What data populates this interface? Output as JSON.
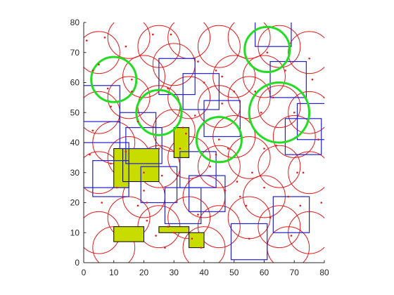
{
  "chart_data": {
    "type": "scatter",
    "title": "",
    "xlabel": "",
    "ylabel": "",
    "xlim": [
      0,
      80
    ],
    "ylim": [
      0,
      80
    ],
    "xticks": [
      0,
      10,
      20,
      30,
      40,
      50,
      60,
      70,
      80
    ],
    "yticks": [
      0,
      10,
      20,
      30,
      40,
      50,
      60,
      70,
      80
    ],
    "x_tick_labels": [
      "0",
      "10",
      "20",
      "30",
      "40",
      "50",
      "60",
      "70",
      "80"
    ],
    "y_tick_labels": [
      "0",
      "10",
      "20",
      "30",
      "40",
      "50",
      "60",
      "70",
      "80"
    ],
    "grid": false,
    "legend": "none",
    "colors": {
      "red_circle": "#e31a1c",
      "green_circle": "#22dd22",
      "blue_rect": "#2020cc",
      "filled_rect": "#c8dc00",
      "axis": "#262626"
    },
    "points": [
      [
        1,
        74
      ],
      [
        2,
        36
      ],
      [
        3,
        64
      ],
      [
        5,
        66
      ],
      [
        7,
        75
      ],
      [
        8,
        58
      ],
      [
        9,
        33
      ],
      [
        11,
        25
      ],
      [
        14,
        72
      ],
      [
        14,
        37
      ],
      [
        16,
        57
      ],
      [
        16,
        61
      ],
      [
        18,
        47
      ],
      [
        20,
        30
      ],
      [
        20,
        24
      ],
      [
        21,
        20
      ],
      [
        21,
        14
      ],
      [
        23,
        76
      ],
      [
        24,
        9
      ],
      [
        25,
        38
      ],
      [
        26,
        29
      ],
      [
        28,
        12
      ],
      [
        28,
        58
      ],
      [
        29,
        76
      ],
      [
        30,
        10
      ],
      [
        32,
        38
      ],
      [
        33,
        45
      ],
      [
        34,
        43
      ],
      [
        35,
        27
      ],
      [
        36,
        8
      ],
      [
        37,
        49
      ],
      [
        38,
        67
      ],
      [
        39,
        5
      ],
      [
        40,
        60
      ],
      [
        42,
        32
      ],
      [
        44,
        64
      ],
      [
        44,
        36
      ],
      [
        45,
        41
      ],
      [
        46,
        62
      ],
      [
        46,
        53
      ],
      [
        47,
        24
      ],
      [
        48,
        38
      ],
      [
        50,
        57
      ],
      [
        51,
        27
      ],
      [
        52,
        22
      ],
      [
        54,
        19
      ],
      [
        55,
        8
      ],
      [
        56,
        30
      ],
      [
        57,
        57
      ],
      [
        59,
        50
      ],
      [
        60,
        25
      ],
      [
        60,
        38
      ],
      [
        61,
        70
      ],
      [
        62,
        15
      ],
      [
        63,
        55
      ],
      [
        64,
        39
      ],
      [
        67,
        64
      ],
      [
        68,
        22
      ],
      [
        69,
        9
      ],
      [
        70,
        50
      ],
      [
        71,
        30
      ],
      [
        72,
        19
      ],
      [
        73,
        30
      ],
      [
        75,
        68
      ],
      [
        76,
        61
      ],
      [
        78,
        41
      ],
      [
        79,
        20
      ],
      [
        80,
        55
      ],
      [
        9,
        52
      ],
      [
        3,
        44
      ],
      [
        6,
        20
      ],
      [
        18,
        19
      ],
      [
        27,
        5
      ],
      [
        38,
        16
      ]
    ],
    "red_circles": [
      [
        5,
        70
      ],
      [
        5,
        50
      ],
      [
        5,
        30
      ],
      [
        5,
        10
      ],
      [
        15,
        75
      ],
      [
        15,
        55
      ],
      [
        15,
        35
      ],
      [
        15,
        15
      ],
      [
        25,
        72
      ],
      [
        25,
        52
      ],
      [
        25,
        32
      ],
      [
        25,
        12
      ],
      [
        35,
        75
      ],
      [
        35,
        55
      ],
      [
        35,
        35
      ],
      [
        35,
        15
      ],
      [
        45,
        72
      ],
      [
        45,
        52
      ],
      [
        45,
        32
      ],
      [
        45,
        12
      ],
      [
        55,
        75
      ],
      [
        55,
        55
      ],
      [
        55,
        35
      ],
      [
        55,
        15
      ],
      [
        65,
        72
      ],
      [
        65,
        52
      ],
      [
        65,
        32
      ],
      [
        65,
        12
      ],
      [
        75,
        70
      ],
      [
        75,
        50
      ],
      [
        75,
        30
      ],
      [
        75,
        10
      ],
      [
        10,
        40
      ],
      [
        20,
        62
      ],
      [
        30,
        44
      ],
      [
        40,
        22
      ],
      [
        50,
        42
      ],
      [
        60,
        62
      ],
      [
        70,
        42
      ],
      [
        30,
        66
      ],
      [
        60,
        22
      ],
      [
        20,
        22
      ],
      [
        50,
        62
      ],
      [
        40,
        5
      ],
      [
        10,
        5
      ],
      [
        68,
        5
      ]
    ],
    "red_circle_radius": 7,
    "green_circles": [
      {
        "cx": 10,
        "cy": 61,
        "r": 7.5
      },
      {
        "cx": 25,
        "cy": 50,
        "r": 7.5
      },
      {
        "cx": 45,
        "cy": 41,
        "r": 7.5
      },
      {
        "cx": 61,
        "cy": 71,
        "r": 7.5
      },
      {
        "cx": 65,
        "cy": 50,
        "r": 10
      }
    ],
    "blue_rects": [
      {
        "x": 57,
        "y": 72,
        "w": 12,
        "h": 12
      },
      {
        "x": 25,
        "y": 56,
        "w": 12,
        "h": 12
      },
      {
        "x": 33,
        "y": 51,
        "w": 12,
        "h": 12
      },
      {
        "x": 0,
        "y": 47,
        "w": 12,
        "h": 12
      },
      {
        "x": 40,
        "y": 42,
        "w": 12,
        "h": 12
      },
      {
        "x": 62,
        "y": 55,
        "w": 12,
        "h": 12
      },
      {
        "x": 71,
        "y": 41,
        "w": 12,
        "h": 12
      },
      {
        "x": 67,
        "y": 36,
        "w": 12,
        "h": 12
      },
      {
        "x": 12,
        "y": 38,
        "w": 12,
        "h": 12
      },
      {
        "x": 14,
        "y": 33,
        "w": 12,
        "h": 12
      },
      {
        "x": 0,
        "y": 25,
        "w": 15,
        "h": 15
      },
      {
        "x": 3,
        "y": 22,
        "w": 12,
        "h": 12
      },
      {
        "x": 19,
        "y": 20,
        "w": 12,
        "h": 12
      },
      {
        "x": 27,
        "y": 13,
        "w": 12,
        "h": 12
      },
      {
        "x": 32,
        "y": 25,
        "w": 12,
        "h": 12
      },
      {
        "x": 35,
        "y": 17,
        "w": 12,
        "h": 12
      },
      {
        "x": 49,
        "y": 1,
        "w": 12,
        "h": 12
      },
      {
        "x": 63,
        "y": 10,
        "w": 12,
        "h": 12
      }
    ],
    "filled_rects": [
      {
        "x": 10,
        "y": 25,
        "w": 5,
        "h": 13
      },
      {
        "x": 13,
        "y": 27,
        "w": 12,
        "h": 11
      },
      {
        "x": 30,
        "y": 35,
        "w": 5,
        "h": 10
      },
      {
        "x": 10,
        "y": 7,
        "w": 10,
        "h": 5
      },
      {
        "x": 25,
        "y": 10,
        "w": 10,
        "h": 2
      },
      {
        "x": 35,
        "y": 5,
        "w": 5,
        "h": 5
      }
    ]
  }
}
